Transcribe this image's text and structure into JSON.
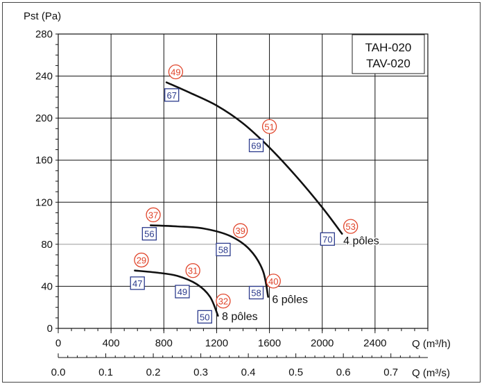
{
  "chart_data": {
    "type": "line",
    "ylabel": "Pst (Pa)",
    "xlabel_main": "Q (m³/h)",
    "xlabel_secondary": "Q (m³/s)",
    "xlim": [
      0,
      2800
    ],
    "ylim": [
      0,
      280
    ],
    "x_ticks": [
      "0",
      "400",
      "800",
      "1200",
      "1600",
      "2000",
      "2400"
    ],
    "y_ticks": [
      "0",
      "40",
      "80",
      "120",
      "160",
      "200",
      "240",
      "280"
    ],
    "x2_ticks": [
      {
        "label": "0.0",
        "q": 0.0
      },
      {
        "label": "0.1",
        "q": 0.1
      },
      {
        "label": "0.2",
        "q": 0.2
      },
      {
        "label": "0.3",
        "q": 0.3
      },
      {
        "label": "0.4",
        "q": 0.4
      },
      {
        "label": "0.5",
        "q": 0.5
      },
      {
        "label": "0.6",
        "q": 0.6
      },
      {
        "label": "0.7",
        "q": 0.7
      }
    ],
    "grid": true,
    "legend_box": [
      "TAH-020",
      "TAV-020"
    ],
    "series": [
      {
        "name": "4 pôles",
        "points": [
          [
            820,
            234
          ],
          [
            1000,
            224
          ],
          [
            1200,
            212
          ],
          [
            1400,
            195
          ],
          [
            1600,
            172
          ],
          [
            1800,
            145
          ],
          [
            2000,
            115
          ],
          [
            2150,
            90
          ]
        ],
        "label_at": [
          2160,
          80
        ]
      },
      {
        "name": "6 pôles",
        "points": [
          [
            700,
            98
          ],
          [
            900,
            97
          ],
          [
            1100,
            95
          ],
          [
            1300,
            88
          ],
          [
            1450,
            75
          ],
          [
            1550,
            55
          ],
          [
            1590,
            30
          ]
        ],
        "label_at": [
          1620,
          24
        ]
      },
      {
        "name": "8 pôles",
        "points": [
          [
            580,
            55
          ],
          [
            750,
            53
          ],
          [
            900,
            50
          ],
          [
            1050,
            42
          ],
          [
            1150,
            30
          ],
          [
            1210,
            12
          ]
        ],
        "label_at": [
          1240,
          8
        ]
      }
    ],
    "sound_circles": [
      {
        "v": "49",
        "x": 890,
        "y": 244
      },
      {
        "v": "51",
        "x": 1600,
        "y": 192
      },
      {
        "v": "53",
        "x": 2215,
        "y": 97
      },
      {
        "v": "37",
        "x": 720,
        "y": 108
      },
      {
        "v": "39",
        "x": 1380,
        "y": 93
      },
      {
        "v": "40",
        "x": 1630,
        "y": 45
      },
      {
        "v": "29",
        "x": 630,
        "y": 65
      },
      {
        "v": "31",
        "x": 1020,
        "y": 55
      },
      {
        "v": "32",
        "x": 1250,
        "y": 26
      }
    ],
    "sound_boxes": [
      {
        "v": "67",
        "x": 860,
        "y": 222
      },
      {
        "v": "69",
        "x": 1500,
        "y": 174
      },
      {
        "v": "70",
        "x": 2040,
        "y": 85
      },
      {
        "v": "56",
        "x": 690,
        "y": 90
      },
      {
        "v": "58",
        "x": 1250,
        "y": 75
      },
      {
        "v": "58",
        "x": 1500,
        "y": 34
      },
      {
        "v": "47",
        "x": 600,
        "y": 43
      },
      {
        "v": "49",
        "x": 940,
        "y": 35
      },
      {
        "v": "50",
        "x": 1110,
        "y": 11
      }
    ],
    "colors": {
      "curve": "#111111",
      "circle": "#e0442a",
      "box": "#2b3a8c",
      "grid_major": "#111111",
      "grid_minor": "#999999"
    }
  }
}
